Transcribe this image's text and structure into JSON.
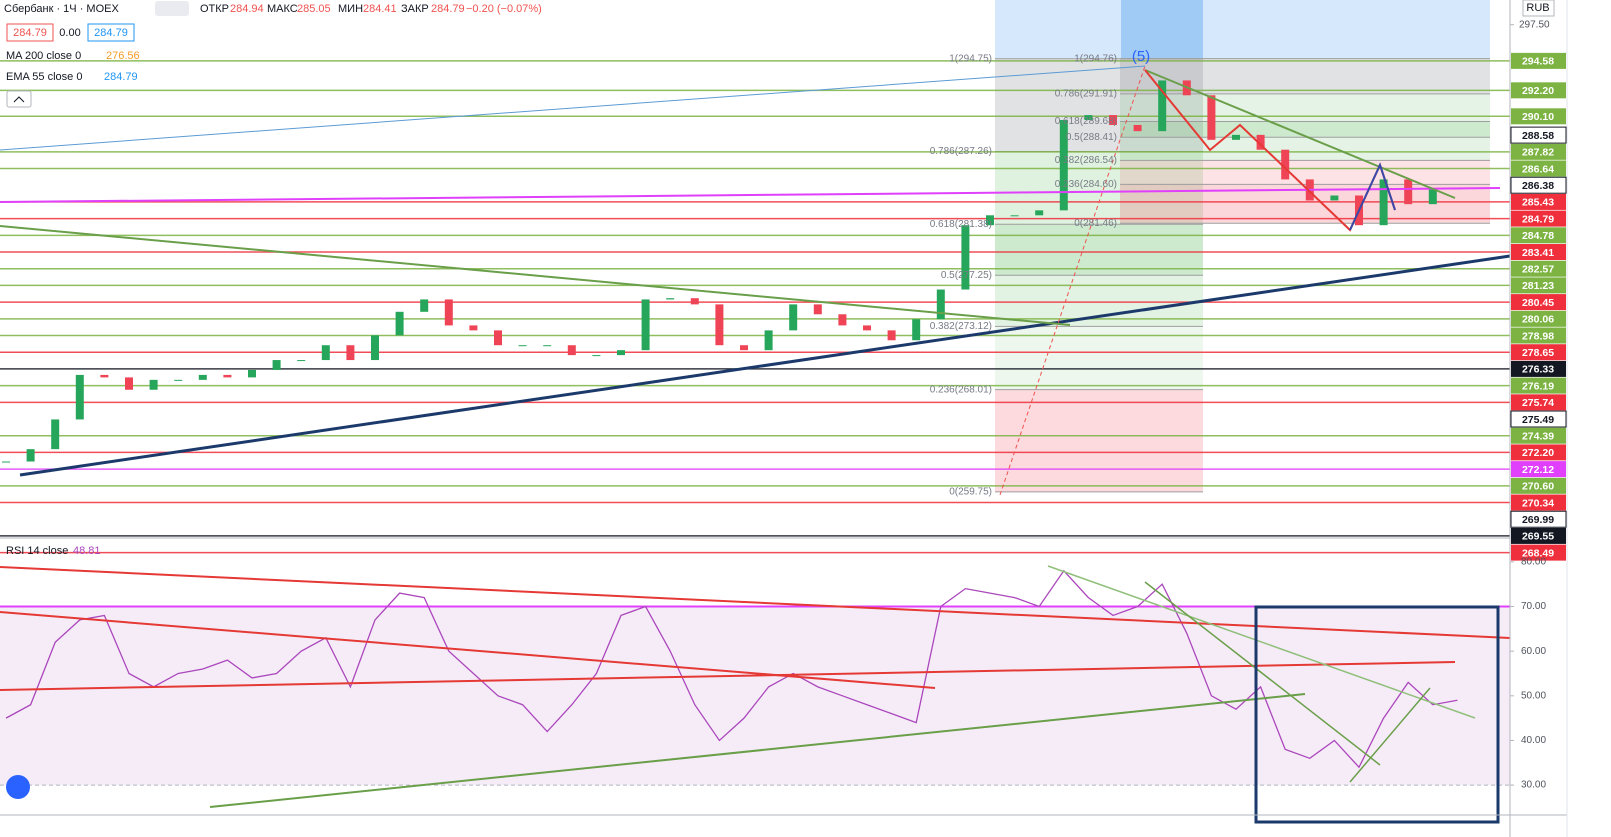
{
  "header": {
    "symbol": "Сбербанк · 1Ч · MOEX",
    "open_label": "ОТКР",
    "open": "284.94",
    "high_label": "МАКС",
    "high": "285.05",
    "low_label": "МИН",
    "low": "284.41",
    "close_label": "ЗАКР",
    "close": "284.79",
    "change": "−0.20 (−0.07%)",
    "bid": "284.79",
    "spread": "0.00",
    "ask": "284.79",
    "currency": "RUB"
  },
  "indicators": [
    {
      "name": "MA 200 close 0",
      "value": "276.56",
      "color": "#f59c2a"
    },
    {
      "name": "EMA 55 close 0",
      "value": "284.79",
      "color": "#2196f3"
    }
  ],
  "chart_data": [
    {
      "type": "candlestick",
      "up_color": "#26a65b",
      "down_color": "#ef4455",
      "values": [
        262.2,
        263.2,
        265.6,
        269.2,
        269,
        268,
        268.8,
        268.8,
        269.2,
        269,
        269.6,
        270.4,
        270.4,
        271.6,
        270.4,
        272.4,
        274.3,
        275.3,
        273.2,
        272.8,
        271.6,
        271.6,
        271.6,
        270.8,
        270.8,
        271.2,
        275.3,
        275.4,
        274.9,
        271.6,
        271.2,
        272.8,
        274.9,
        274.1,
        273.2,
        272.8,
        272,
        273.7,
        276.1,
        281.3,
        282.1,
        282.1,
        282.5,
        289.8,
        290.2,
        289.4,
        288.9,
        293,
        291.8,
        288.2,
        288.6,
        287.4,
        285,
        283.3,
        283.7,
        281.3,
        285,
        283,
        284.2,
        284.3
      ],
      "ylim": [
        256.1,
        299.5
      ],
      "yticks": [
        {
          "value": 297.5,
          "label": "297.50"
        }
      ],
      "wave_label": "(5)",
      "fib_left": {
        "zone_colors": [
          "rgba(120,123,134,0.22)",
          "rgba(76,175,80,0.18)",
          "rgba(76,175,80,0.28)",
          "rgba(76,175,80,0.16)",
          "rgba(76,175,80,0.1)",
          "rgba(239,68,85,0.2)"
        ],
        "levels": [
          {
            "value": 294.75,
            "label": "1(294.75)"
          },
          {
            "value": 287.26,
            "label": "0.786(287.26)"
          },
          {
            "value": 281.38,
            "label": "0.618(281.38)"
          },
          {
            "value": 277.25,
            "label": "0.5(277.25)"
          },
          {
            "value": 273.12,
            "label": "0.382(273.12)"
          },
          {
            "value": 268.01,
            "label": "0.236(268.01)"
          },
          {
            "value": 259.75,
            "label": "0(259.75)"
          }
        ]
      },
      "fib_right": {
        "zone_colors": [
          "rgba(120,123,134,0.22)",
          "rgba(76,175,80,0.15)",
          "rgba(76,175,80,0.28)",
          "rgba(76,175,80,0.15)",
          "rgba(239,68,85,0.15)",
          "rgba(239,68,85,0.22)"
        ],
        "levels": [
          {
            "value": 294.76,
            "label": "1(294.76)"
          },
          {
            "value": 291.91,
            "label": "0.786(291.91)"
          },
          {
            "value": 289.68,
            "label": "0.618(289.68)"
          },
          {
            "value": 288.41,
            "label": "0.5(288.41)"
          },
          {
            "value": 286.54,
            "label": "0.382(286.54)"
          },
          {
            "value": 284.6,
            "label": "0.236(284.60)"
          },
          {
            "value": 281.46,
            "label": "0(281.46)"
          }
        ]
      },
      "price_tags": [
        {
          "value": 294.58,
          "label": "294.58",
          "color": "#7cb342"
        },
        {
          "value": 292.2,
          "label": "292.20",
          "color": "#7cb342"
        },
        {
          "value": 290.1,
          "label": "290.10",
          "color": "#7cb342"
        },
        {
          "value": 288.58,
          "label": "288.58",
          "color": "#ffffff"
        },
        {
          "value": 287.82,
          "label": "287.82",
          "color": "#7cb342"
        },
        {
          "value": 286.64,
          "label": "286.64",
          "color": "#7cb342"
        },
        {
          "value": 286.38,
          "label": "286.38",
          "color": "#ffffff"
        },
        {
          "value": 285.43,
          "label": "285.43",
          "color": "#ef2f3c"
        },
        {
          "value": 284.79,
          "label": "284.79",
          "color": "#ef2f3c"
        },
        {
          "value": 284.78,
          "label": "284.78",
          "color": "#7cb342"
        },
        {
          "value": 283.41,
          "label": "283.41",
          "color": "#ef2f3c"
        },
        {
          "value": 282.57,
          "label": "282.57",
          "color": "#7cb342"
        },
        {
          "value": 281.23,
          "label": "281.23",
          "color": "#7cb342"
        },
        {
          "value": 280.45,
          "label": "280.45",
          "color": "#ef2f3c"
        },
        {
          "value": 280.06,
          "label": "280.06",
          "color": "#7cb342"
        },
        {
          "value": 278.98,
          "label": "278.98",
          "color": "#7cb342"
        },
        {
          "value": 278.65,
          "label": "278.65",
          "color": "#ef2f3c"
        },
        {
          "value": 276.33,
          "label": "276.33",
          "color": "#131722"
        },
        {
          "value": 276.19,
          "label": "276.19",
          "color": "#7cb342"
        },
        {
          "value": 275.74,
          "label": "275.74",
          "color": "#ef2f3c"
        },
        {
          "value": 275.49,
          "label": "275.49",
          "color": "#ffffff"
        },
        {
          "value": 274.39,
          "label": "274.39",
          "color": "#7cb342"
        },
        {
          "value": 272.2,
          "label": "272.20",
          "color": "#ef2f3c"
        },
        {
          "value": 272.12,
          "label": "272.12",
          "color": "#e040fb"
        },
        {
          "value": 270.6,
          "label": "270.60",
          "color": "#7cb342"
        },
        {
          "value": 270.34,
          "label": "270.34",
          "color": "#ef2f3c"
        },
        {
          "value": 269.99,
          "label": "269.99",
          "color": "#ffffff"
        },
        {
          "value": 269.55,
          "label": "269.55",
          "color": "#131722"
        },
        {
          "value": 268.49,
          "label": "268.49",
          "color": "#ef2f3c"
        }
      ]
    },
    {
      "type": "line",
      "title": "RSI 14 close",
      "last": "48.81",
      "color": "#ab47bc",
      "values": [
        45,
        48,
        62,
        67,
        68,
        55,
        52,
        55,
        56,
        58,
        54,
        55,
        60,
        63,
        52,
        67,
        73,
        72,
        60,
        55,
        50,
        48,
        42,
        48,
        55,
        68,
        70,
        60,
        48,
        40,
        45,
        52,
        55,
        52,
        50,
        48,
        46,
        44,
        70,
        74,
        73,
        72,
        70,
        78,
        72,
        68,
        70,
        75,
        64,
        50,
        47,
        52,
        38,
        36,
        40,
        34,
        45,
        53,
        48,
        49
      ],
      "ylim": [
        23.3,
        84.9
      ],
      "band": [
        30,
        70
      ],
      "yticks": [
        {
          "value": 80,
          "label": "80.00"
        },
        {
          "value": 70,
          "label": "70.00"
        },
        {
          "value": 60,
          "label": "60.00"
        },
        {
          "value": 50,
          "label": "50.00"
        },
        {
          "value": 40,
          "label": "40.00"
        },
        {
          "value": 30,
          "label": "30.00"
        }
      ]
    }
  ]
}
